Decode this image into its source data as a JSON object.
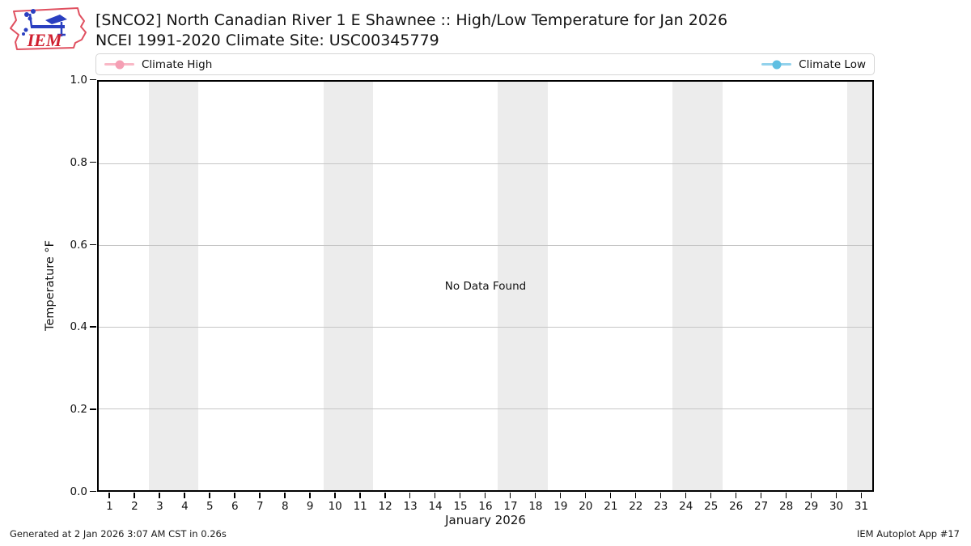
{
  "header": {
    "logo_text": "IEM",
    "title_line1": "[SNCO2] North Canadian River 1 E Shawnee :: High/Low Temperature for Jan 2026",
    "title_line2": "NCEI 1991-2020 Climate Site: USC00345779"
  },
  "legend": {
    "entries": [
      {
        "label": "Climate High",
        "line_color": "#F9B8C6",
        "marker_color": "#F59FB4"
      },
      {
        "label": "Climate Low",
        "line_color": "#93D2EC",
        "marker_color": "#5FBFE2"
      }
    ]
  },
  "chart_data": {
    "type": "line",
    "title": "[SNCO2] North Canadian River 1 E Shawnee :: High/Low Temperature for Jan 2026",
    "subtitle": "NCEI 1991-2020 Climate Site: USC00345779",
    "xlabel": "January 2026",
    "ylabel": "Temperature °F",
    "xlim": [
      0.5,
      31.5
    ],
    "ylim": [
      0.0,
      1.0
    ],
    "x_ticks": [
      1,
      2,
      3,
      4,
      5,
      6,
      7,
      8,
      9,
      10,
      11,
      12,
      13,
      14,
      15,
      16,
      17,
      18,
      19,
      20,
      21,
      22,
      23,
      24,
      25,
      26,
      27,
      28,
      29,
      30,
      31
    ],
    "y_ticks": [
      0.0,
      0.2,
      0.4,
      0.6,
      0.8,
      1.0
    ],
    "y_tick_labels": [
      "0.0",
      "0.2",
      "0.4",
      "0.6",
      "0.8",
      "1.0"
    ],
    "grid": "horizontal",
    "grid_color": "#C6C6C6",
    "legend_position": "top",
    "series": [
      {
        "name": "Climate High",
        "x": [],
        "values": [],
        "color": "#FFC0CB"
      },
      {
        "name": "Climate Low",
        "x": [],
        "values": [],
        "color": "#87CEEB"
      }
    ],
    "annotation": "No Data Found",
    "weekend_shading_x_ranges": [
      [
        2.5,
        4.5
      ],
      [
        9.5,
        11.5
      ],
      [
        16.5,
        18.5
      ],
      [
        23.5,
        25.5
      ],
      [
        30.5,
        31.5
      ]
    ],
    "shading_color": "#ECECEC"
  },
  "footer": {
    "left": "Generated at 2 Jan 2026 3:07 AM CST in 0.26s",
    "right": "IEM Autoplot App #17"
  }
}
